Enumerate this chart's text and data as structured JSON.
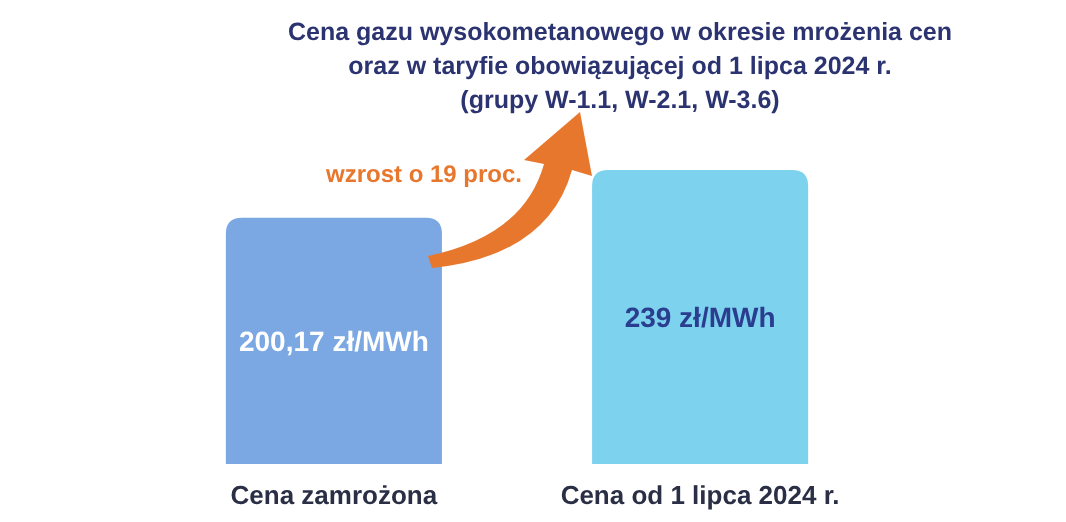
{
  "chart_data": {
    "type": "bar",
    "title": "Cena gazu wysokometanowego w okresie mrożenia cen\noraz w taryfie obowiązującej od 1 lipca 2024 r.\n(grupy W-1.1, W-2.1, W-3.6)",
    "categories": [
      "Cena zamrożona",
      "Cena od 1 lipca 2024 r."
    ],
    "values": [
      200.17,
      239
    ],
    "value_labels": [
      "200,17 zł/MWh",
      "239 zł/MWh"
    ],
    "colors": [
      "#7ba7e2",
      "#7dd3ee"
    ],
    "annotations": [
      "wzrost o 19 proc."
    ]
  }
}
